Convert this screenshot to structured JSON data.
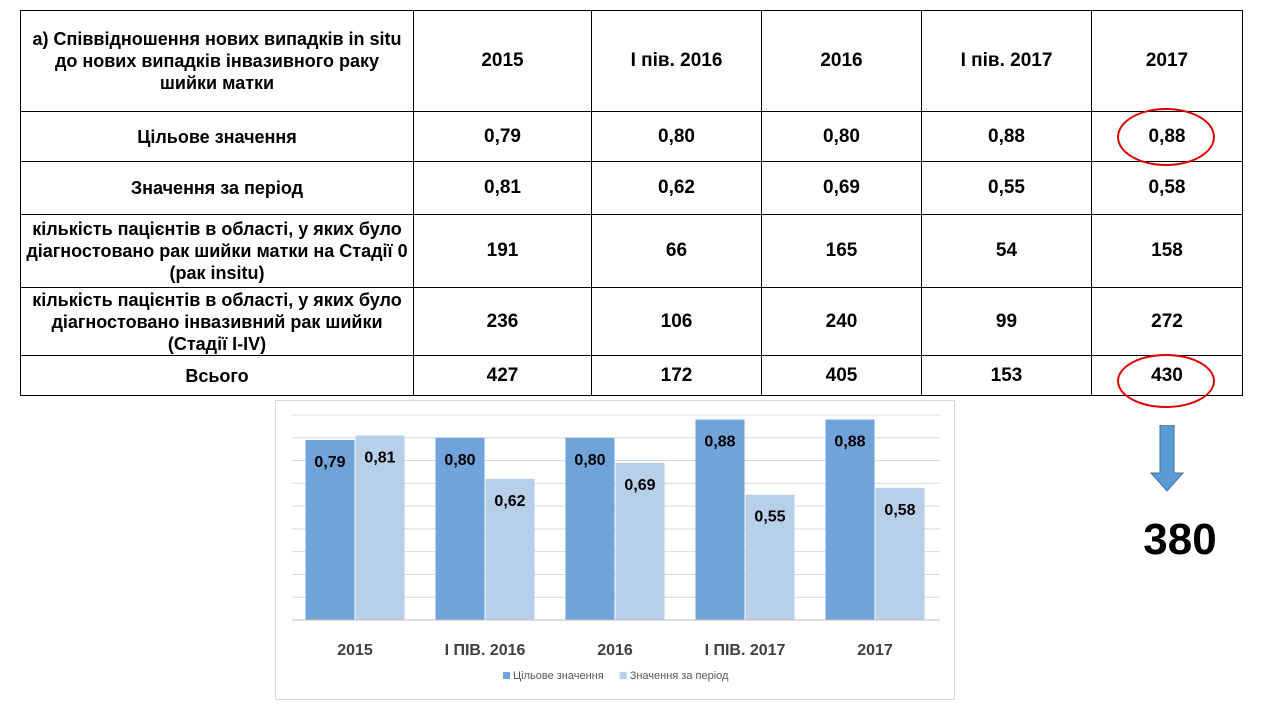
{
  "table": {
    "header_label": "а) Співвідношення  нових випадків in situ до нових випадків інвазивного раку шийки матки",
    "columns": [
      "2015",
      "І пів. 2016",
      "2016",
      "І пів. 2017",
      "2017"
    ],
    "rows": [
      {
        "label": "Цільове значення",
        "values": [
          "0,79",
          "0,80",
          "0,80",
          "0,88",
          "0,88"
        ]
      },
      {
        "label": "Значення за період",
        "values": [
          "0,81",
          "0,62",
          "0,69",
          "0,55",
          "0,58"
        ]
      },
      {
        "label": "кількість пацієнтів в області, у яких було діагностовано рак шийки матки на Стадії 0 (рак insitu)",
        "values": [
          "191",
          "66",
          "165",
          "54",
          "158"
        ]
      },
      {
        "label": "кількість пацієнтів в області, у яких було діагностовано інвазивний рак шийки (Стадії I-IV)",
        "values": [
          "236",
          "106",
          "240",
          "99",
          "272"
        ]
      },
      {
        "label": "Всього",
        "values": [
          "427",
          "172",
          "405",
          "153",
          "430"
        ]
      }
    ]
  },
  "annotation": {
    "result_value": "380",
    "highlight_color": "#e00000",
    "arrow_color": "#5b9bd5"
  },
  "chart_data": {
    "type": "bar",
    "categories": [
      "2015",
      "І ПІВ. 2016",
      "2016",
      "І ПІВ. 2017",
      "2017"
    ],
    "series": [
      {
        "name": "Цільове значення",
        "values": [
          0.79,
          0.8,
          0.8,
          0.88,
          0.88
        ],
        "labels": [
          "0,79",
          "0,80",
          "0,80",
          "0,88",
          "0,88"
        ],
        "color": "#6fa3d9"
      },
      {
        "name": "Значення за період",
        "values": [
          0.81,
          0.62,
          0.69,
          0.55,
          0.58
        ],
        "labels": [
          "0,81",
          "0,62",
          "0,69",
          "0,55",
          "0,58"
        ],
        "color": "#b8cfe9"
      }
    ],
    "title": "",
    "xlabel": "",
    "ylabel": "",
    "ylim": [
      0,
      0.9
    ],
    "grid": true,
    "legend": "bottom"
  }
}
